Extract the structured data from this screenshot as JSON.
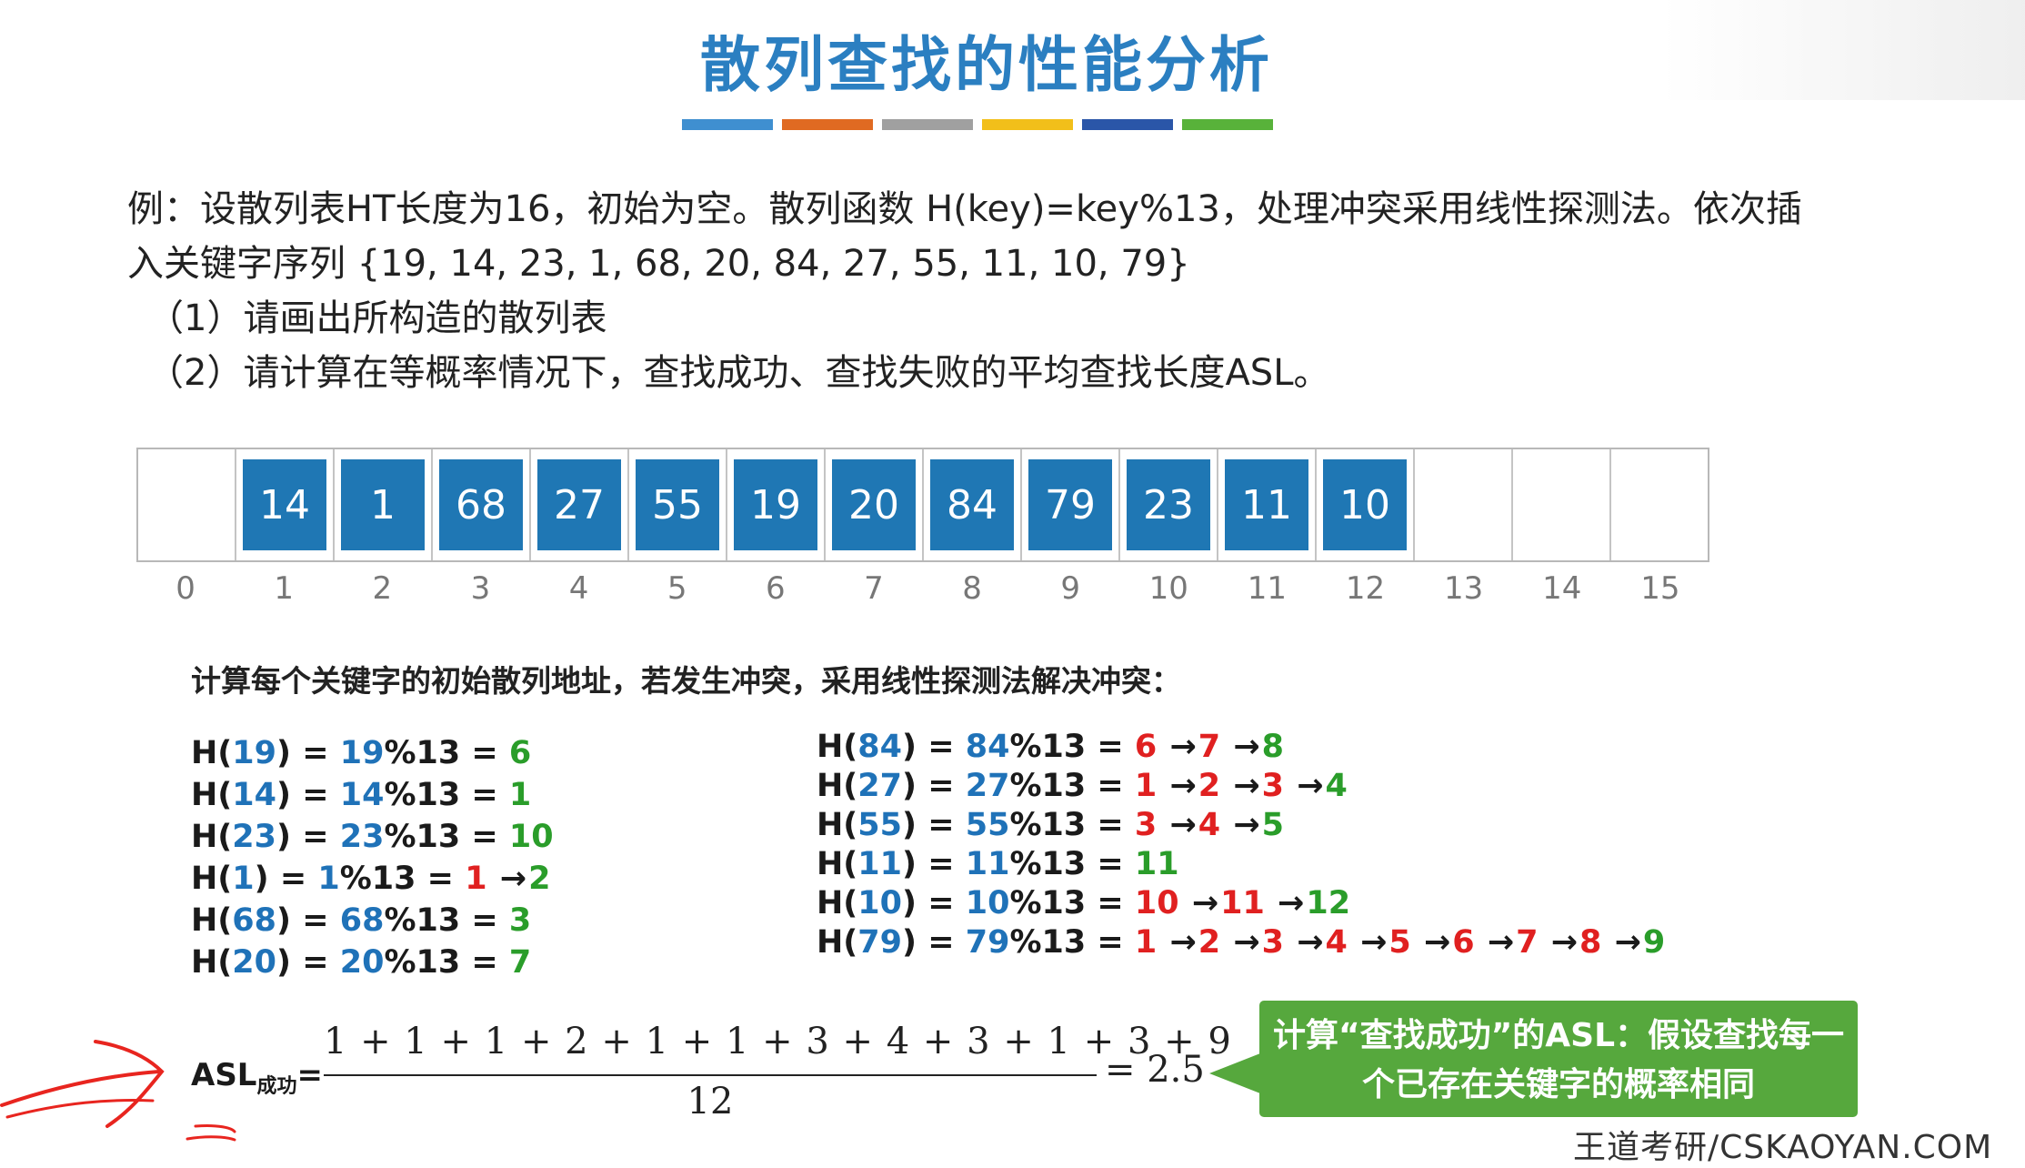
{
  "title": "散列查找的性能分析",
  "colors": {
    "title": "#2b7fc1",
    "cell_fill": "#1f77b4",
    "blue": "#1f72b8",
    "green": "#2a9d2a",
    "red": "#e02020",
    "callout": "#56a83d",
    "strips": [
      "#3f8fd0",
      "#e06a22",
      "#a0a0a0",
      "#f2bf1a",
      "#2a56a8",
      "#58b23a"
    ]
  },
  "problem": {
    "line1": "例：设散列表HT长度为16，初始为空。散列函数 H(key)=key%13，处理冲突采用线性探测法。依次插",
    "line2": "入关键字序列 {19, 14, 23, 1, 68, 20, 84, 27, 55, 11, 10, 79}",
    "q1": "（1）请画出所构造的散列表",
    "q2": "（2）请计算在等概率情况下，查找成功、查找失败的平均查找长度ASL。"
  },
  "hash_table": {
    "cells": [
      "",
      "14",
      "1",
      "68",
      "27",
      "55",
      "19",
      "20",
      "84",
      "79",
      "23",
      "11",
      "10",
      "",
      "",
      ""
    ],
    "indices": [
      "0",
      "1",
      "2",
      "3",
      "4",
      "5",
      "6",
      "7",
      "8",
      "9",
      "10",
      "11",
      "12",
      "13",
      "14",
      "15"
    ]
  },
  "subtitle": "计算每个关键字的初始散列地址，若发生冲突，采用线性探测法解决冲突：",
  "calcs_left": [
    {
      "key": "19",
      "addr": "6",
      "probes": []
    },
    {
      "key": "14",
      "addr": "1",
      "probes": []
    },
    {
      "key": "23",
      "addr": "10",
      "probes": []
    },
    {
      "key": "1",
      "addr": "1",
      "probes": [
        "2"
      ]
    },
    {
      "key": "68",
      "addr": "3",
      "probes": []
    },
    {
      "key": "20",
      "addr": "7",
      "probes": []
    }
  ],
  "calcs_right": [
    {
      "key": "84",
      "addr": "6",
      "probes": [
        "7",
        "8"
      ]
    },
    {
      "key": "27",
      "addr": "1",
      "probes": [
        "2",
        "3",
        "4"
      ]
    },
    {
      "key": "55",
      "addr": "3",
      "probes": [
        "4",
        "5"
      ]
    },
    {
      "key": "11",
      "addr": "11",
      "probes": []
    },
    {
      "key": "10",
      "addr": "10",
      "probes": [
        "11",
        "12"
      ]
    },
    {
      "key": "79",
      "addr": "1",
      "probes": [
        "2",
        "3",
        "4",
        "5",
        "6",
        "7",
        "8",
        "9"
      ]
    }
  ],
  "asl": {
    "label": "ASL",
    "subscript": "成功",
    "equals": "=",
    "numerator": "1 + 1 + 1 + 2 + 1 + 1 + 3 + 4 + 3 + 1 + 3 + 9",
    "denominator": "12",
    "result": "= 2.5"
  },
  "callout": {
    "line1": "计算“查找成功”的ASL：假设查找每一",
    "line2": "个已存在关键字的概率相同"
  },
  "footer_watermark": "王道考研/CSKAOYAN.COM"
}
